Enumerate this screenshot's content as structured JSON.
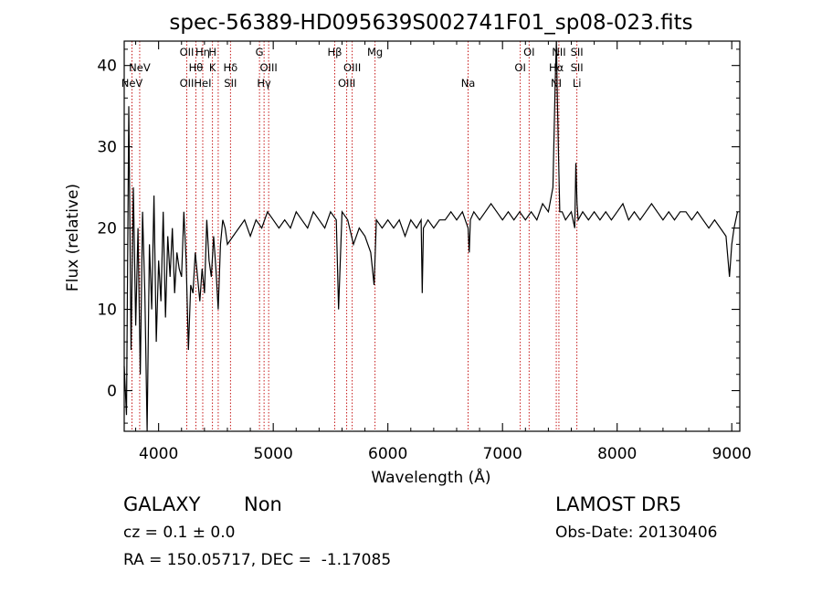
{
  "chart_data": {
    "type": "line",
    "title": "spec-56389-HD095639S002741F01_sp08-023.fits",
    "xlabel": "Wavelength (Å)",
    "ylabel": "Flux (relative)",
    "xlim": [
      3700,
      9070
    ],
    "ylim": [
      -5,
      43
    ],
    "xticks": [
      4000,
      5000,
      6000,
      7000,
      8000,
      9000
    ],
    "yticks": [
      0,
      10,
      20,
      30,
      40
    ],
    "grid": false,
    "line_color": "#000000",
    "marker_color": "#c00000",
    "series": [
      {
        "x": [
          3700,
          3720,
          3740,
          3760,
          3780,
          3800,
          3820,
          3840,
          3860,
          3880,
          3900,
          3920,
          3940,
          3960,
          3980,
          4000,
          4020,
          4040,
          4060,
          4080,
          4100,
          4120,
          4140,
          4160,
          4180,
          4200,
          4220,
          4240,
          4260,
          4280,
          4300,
          4320,
          4340,
          4360,
          4380,
          4400,
          4420,
          4440,
          4460,
          4480,
          4500,
          4520,
          4540,
          4560,
          4580,
          4600,
          4650,
          4700,
          4750,
          4800,
          4850,
          4900,
          4950,
          5000,
          5050,
          5100,
          5150,
          5200,
          5250,
          5300,
          5350,
          5400,
          5450,
          5500,
          5550,
          5570,
          5600,
          5650,
          5700,
          5750,
          5800,
          5850,
          5880,
          5900,
          5950,
          6000,
          6050,
          6100,
          6150,
          6200,
          6250,
          6290,
          6300,
          6310,
          6350,
          6400,
          6450,
          6500,
          6550,
          6600,
          6650,
          6700,
          6710,
          6720,
          6750,
          6800,
          6850,
          6900,
          6950,
          7000,
          7050,
          7100,
          7150,
          7200,
          7250,
          7300,
          7350,
          7400,
          7440,
          7460,
          7470,
          7480,
          7490,
          7500,
          7520,
          7550,
          7600,
          7630,
          7640,
          7650,
          7660,
          7700,
          7750,
          7800,
          7850,
          7900,
          7950,
          8000,
          8050,
          8100,
          8150,
          8200,
          8250,
          8300,
          8350,
          8400,
          8450,
          8500,
          8550,
          8600,
          8650,
          8700,
          8750,
          8800,
          8850,
          8900,
          8950,
          8980,
          9000,
          9020,
          9050
        ],
        "y": [
          3,
          -3,
          35,
          5,
          25,
          8,
          20,
          2,
          22,
          12,
          -5,
          18,
          10,
          24,
          6,
          16,
          11,
          22,
          9,
          19,
          14,
          20,
          12,
          17,
          15,
          14,
          22,
          16,
          5,
          13,
          12,
          17,
          14,
          11,
          15,
          12,
          21,
          16,
          14,
          19,
          15,
          10,
          18,
          21,
          20,
          18,
          19,
          20,
          21,
          19,
          21,
          20,
          22,
          21,
          20,
          21,
          20,
          22,
          21,
          20,
          22,
          21,
          20,
          22,
          21,
          10,
          22,
          21,
          18,
          20,
          19,
          17,
          13,
          21,
          20,
          21,
          20,
          21,
          19,
          21,
          20,
          21,
          12,
          20,
          21,
          20,
          21,
          21,
          22,
          21,
          22,
          20,
          17,
          21,
          22,
          21,
          22,
          23,
          22,
          21,
          22,
          21,
          22,
          21,
          22,
          21,
          23,
          22,
          25,
          38,
          43,
          35,
          28,
          22,
          22,
          21,
          22,
          20,
          28,
          23,
          21,
          22,
          21,
          22,
          21,
          22,
          21,
          22,
          23,
          21,
          22,
          21,
          22,
          23,
          22,
          21,
          22,
          21,
          22,
          22,
          21,
          22,
          21,
          20,
          21,
          20,
          19,
          14,
          18,
          20,
          22
        ]
      }
    ],
    "emission_lines": [
      {
        "x": 3768,
        "top": "",
        "mid": "",
        "bot": "NeV"
      },
      {
        "x": 3835,
        "top": "",
        "mid": "NeV",
        "bot": ""
      },
      {
        "x": 4246,
        "top": "OII",
        "mid": "",
        "bot": "OII"
      },
      {
        "x": 4325,
        "top": "",
        "mid": "Hθ",
        "bot": ""
      },
      {
        "x": 4385,
        "top": "Hη",
        "mid": "",
        "bot": "HeI"
      },
      {
        "x": 4470,
        "top": "H",
        "mid": "K",
        "bot": ""
      },
      {
        "x": 4520,
        "top": "",
        "mid": "",
        "bot": ""
      },
      {
        "x": 4627,
        "top": "",
        "mid": "Hδ",
        "bot": "SII"
      },
      {
        "x": 4880,
        "top": "G",
        "mid": "",
        "bot": ""
      },
      {
        "x": 4920,
        "top": "",
        "mid": "",
        "bot": "Hγ"
      },
      {
        "x": 4960,
        "top": "",
        "mid": "OIII",
        "bot": ""
      },
      {
        "x": 5536,
        "top": "Hβ",
        "mid": "",
        "bot": ""
      },
      {
        "x": 5641,
        "top": "",
        "mid": "",
        "bot": "OIII"
      },
      {
        "x": 5689,
        "top": "",
        "mid": "OIII",
        "bot": ""
      },
      {
        "x": 5888,
        "top": "Mg",
        "mid": "",
        "bot": ""
      },
      {
        "x": 6700,
        "top": "",
        "mid": "",
        "bot": "Na"
      },
      {
        "x": 7155,
        "top": "",
        "mid": "OI",
        "bot": ""
      },
      {
        "x": 7232,
        "top": "OI",
        "mid": "",
        "bot": ""
      },
      {
        "x": 7469,
        "top": "",
        "mid": "Hα",
        "bot": "NI"
      },
      {
        "x": 7492,
        "top": "NII",
        "mid": "",
        "bot": ""
      },
      {
        "x": 7649,
        "top": "SII",
        "mid": "SII",
        "bot": "Li"
      }
    ]
  },
  "info": {
    "object_class": "GALAXY",
    "subclass": "Non",
    "redshift": "cz = 0.1 ± 0.0",
    "coords": "RA = 150.05717, DEC =  -1.17085",
    "survey": "LAMOST DR5",
    "obs_date": "Obs-Date: 20130406"
  }
}
